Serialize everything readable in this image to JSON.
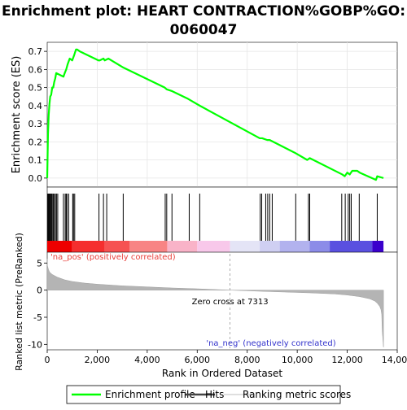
{
  "chart_data": {
    "type": "line",
    "title_line1": "Enrichment plot: HEART CONTRACTION%GOBP%GO:",
    "title_line2": "0060047",
    "es_panel": {
      "ylabel": "Enrichment score (ES)",
      "ylim": [
        -0.05,
        0.75
      ],
      "yticks": [
        0.0,
        0.1,
        0.2,
        0.3,
        0.4,
        0.5,
        0.6,
        0.7
      ],
      "ytick_labels": [
        "0.0",
        "0.1",
        "0.2",
        "0.3",
        "0.4",
        "0.5",
        "0.6",
        "0.7"
      ],
      "series": [
        {
          "name": "Enrichment profile",
          "color": "#00ff00",
          "x": [
            0,
            30,
            60,
            90,
            120,
            160,
            200,
            240,
            280,
            320,
            360,
            650,
            700,
            760,
            820,
            900,
            1000,
            1080,
            1150,
            1200,
            1300,
            2050,
            2100,
            2250,
            2300,
            2450,
            3050,
            4700,
            4780,
            5000,
            5600,
            6100,
            8500,
            8600,
            8800,
            8900,
            9900,
            10400,
            10500,
            11800,
            11900,
            12000,
            12100,
            12200,
            12400,
            12500,
            13150,
            13200,
            13450
          ],
          "y": [
            0.0,
            0.24,
            0.35,
            0.41,
            0.45,
            0.46,
            0.5,
            0.5,
            0.53,
            0.55,
            0.58,
            0.56,
            0.58,
            0.6,
            0.63,
            0.66,
            0.65,
            0.68,
            0.71,
            0.71,
            0.7,
            0.65,
            0.65,
            0.66,
            0.65,
            0.66,
            0.61,
            0.5,
            0.49,
            0.48,
            0.44,
            0.4,
            0.22,
            0.22,
            0.21,
            0.21,
            0.14,
            0.1,
            0.11,
            0.02,
            0.01,
            0.03,
            0.02,
            0.04,
            0.04,
            0.03,
            -0.01,
            0.01,
            0.0
          ]
        }
      ]
    },
    "hits": [
      20,
      50,
      80,
      110,
      140,
      170,
      200,
      240,
      280,
      330,
      370,
      420,
      650,
      720,
      760,
      790,
      860,
      1020,
      1050,
      1100,
      2070,
      2250,
      2380,
      3040,
      4720,
      4780,
      4990,
      5680,
      6100,
      8520,
      8580,
      8740,
      8820,
      8900,
      9000,
      9940,
      10450,
      10500,
      11780,
      11920,
      12040,
      12100,
      12160,
      12480,
      13200
    ],
    "ranked_panel": {
      "ylabel": "Ranked list metric (PreRanked)",
      "ylim": [
        -11,
        7
      ],
      "yticks": [
        5,
        0,
        -5,
        -10
      ],
      "ytick_labels": [
        "5",
        "0",
        "-5",
        "-10"
      ],
      "metric_x": [
        0,
        10,
        50,
        100,
        200,
        400,
        700,
        1000,
        1500,
        2000,
        3000,
        4000,
        5000,
        6000,
        7313,
        8500,
        9500,
        10500,
        11500,
        12000,
        12500,
        12900,
        13100,
        13200,
        13300,
        13350,
        13380,
        13400,
        13450
      ],
      "metric_y": [
        5.8,
        4.5,
        3.8,
        3.3,
        2.9,
        2.4,
        1.9,
        1.6,
        1.3,
        1.1,
        0.8,
        0.6,
        0.4,
        0.25,
        0.0,
        -0.2,
        -0.35,
        -0.5,
        -0.7,
        -0.9,
        -1.2,
        -1.6,
        -2.0,
        -2.4,
        -3.0,
        -3.6,
        -4.5,
        -7.5,
        -10.5
      ],
      "pos_label": "'na_pos' (positively correlated)",
      "neg_label": "'na_neg' (negatively correlated)",
      "zero_cross_label": "Zero cross at 7313",
      "zero_cross_x": 7313
    },
    "xaxis": {
      "xlabel": "Rank in Ordered Dataset",
      "xlim": [
        0,
        14000
      ],
      "xticks": [
        0,
        2000,
        4000,
        6000,
        8000,
        10000,
        12000,
        14000
      ],
      "xtick_labels": [
        "0",
        "2,000",
        "4,000",
        "6,000",
        "8,000",
        "10,000",
        "12,000",
        "14,000"
      ]
    },
    "heatmap_bar": {
      "segments": [
        {
          "x0": 0,
          "x1": 1000,
          "color": "#ee0000"
        },
        {
          "x0": 1000,
          "x1": 2300,
          "color": "#f52e2e"
        },
        {
          "x0": 2300,
          "x1": 3300,
          "color": "#f65252"
        },
        {
          "x0": 3300,
          "x1": 4800,
          "color": "#f88484"
        },
        {
          "x0": 4800,
          "x1": 6000,
          "color": "#f9b3c8"
        },
        {
          "x0": 6000,
          "x1": 7313,
          "color": "#f8c8ea"
        },
        {
          "x0": 7313,
          "x1": 8500,
          "color": "#e4e4f6"
        },
        {
          "x0": 8500,
          "x1": 9300,
          "color": "#cfcff2"
        },
        {
          "x0": 9300,
          "x1": 10500,
          "color": "#b2b2ee"
        },
        {
          "x0": 10500,
          "x1": 11300,
          "color": "#8c8ce8"
        },
        {
          "x0": 11300,
          "x1": 13000,
          "color": "#5a50e0"
        },
        {
          "x0": 13000,
          "x1": 13450,
          "color": "#3a00cc"
        }
      ]
    },
    "legend": {
      "entries": [
        {
          "label": "Enrichment profile",
          "color": "#00ff00"
        },
        {
          "label": "Hits",
          "color": "#444444"
        },
        {
          "label": "Ranking metric scores",
          "color": "#cccccc"
        }
      ]
    }
  }
}
